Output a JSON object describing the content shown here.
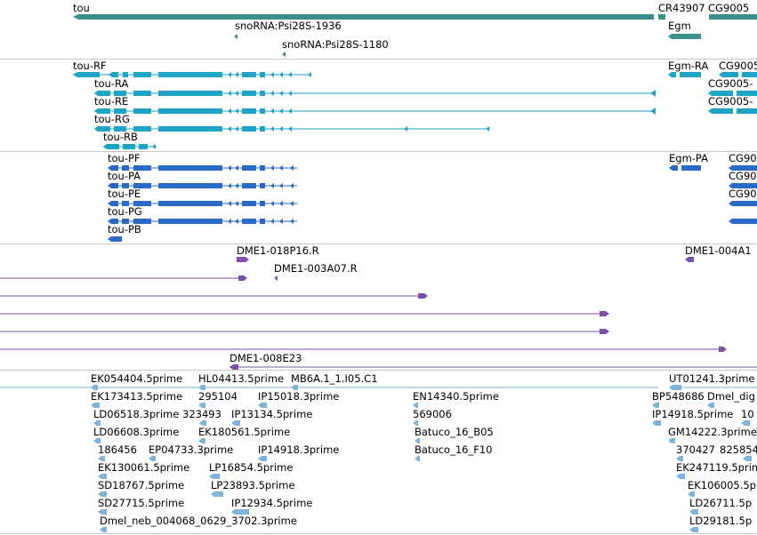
{
  "colors": {
    "gene": "#3d8f8b",
    "mrna": "#1ea5c6",
    "cds": "#2a69c8",
    "clone": "#7b51a8",
    "est": "#7fb4d8",
    "separator": "#c8c8c8"
  },
  "labels": {
    "gene": {
      "tou": "tou",
      "cr": "CR43907",
      "cg": "CG9005",
      "sno1": "snoRNA:Psi28S-1936",
      "sno2": "snoRNA:Psi28S-1180",
      "egm": "Egm"
    },
    "mrna": {
      "rf": "tou-RF",
      "ra": "tou-RA",
      "re": "tou-RE",
      "rg": "tou-RG",
      "rb": "tou-RB",
      "egmra": "Egm-RA",
      "cg1": "CG9005",
      "cg2": "CG9005-",
      "cg3": "CG9005-"
    },
    "cds": {
      "pf": "tou-PF",
      "pa": "tou-PA",
      "pe": "tou-PE",
      "pg": "tou-PG",
      "pb": "tou-PB",
      "egmpa": "Egm-PA",
      "cg1": "CG90",
      "cg2": "CG90",
      "cg3": "CG90"
    },
    "clone": {
      "c1": "DME1-018P16.R",
      "c2": "DME1-004A1",
      "c3": "DME1-003A07.R",
      "c4": "DME1-008E23"
    },
    "est": [
      "EK054404.5prime",
      "HL04413.5prime",
      "MB6A.1_1.I05.C1",
      "UT01241.3prime",
      "EK173413.5prime",
      "295104",
      "IP15018.3prime",
      "EN14340.5prime",
      "BP548686",
      "Dmel_dig",
      "LD06518.3prime",
      "323493",
      "IP13134.5prime",
      "569006",
      "IP14918.5prime",
      "10",
      "LD06608.3prime",
      "EK180561.5prime",
      "Batuco_16_B05",
      "GM14222.3prime",
      "186456",
      "EP04733.3prime",
      "IP14918.3prime",
      "Batuco_16_F10",
      "370427",
      "825854",
      "EK130061.5prime",
      "LP16854.5prime",
      "EK247119.5prime",
      "SD18767.5prime",
      "LP23893.5prime",
      "EK106005.5p",
      "SD27715.5prime",
      "IP12934.5prime",
      "LD26711.5p",
      "Dmel_neb_004068_0629_3702.3prime",
      "LD29181.5p"
    ]
  }
}
